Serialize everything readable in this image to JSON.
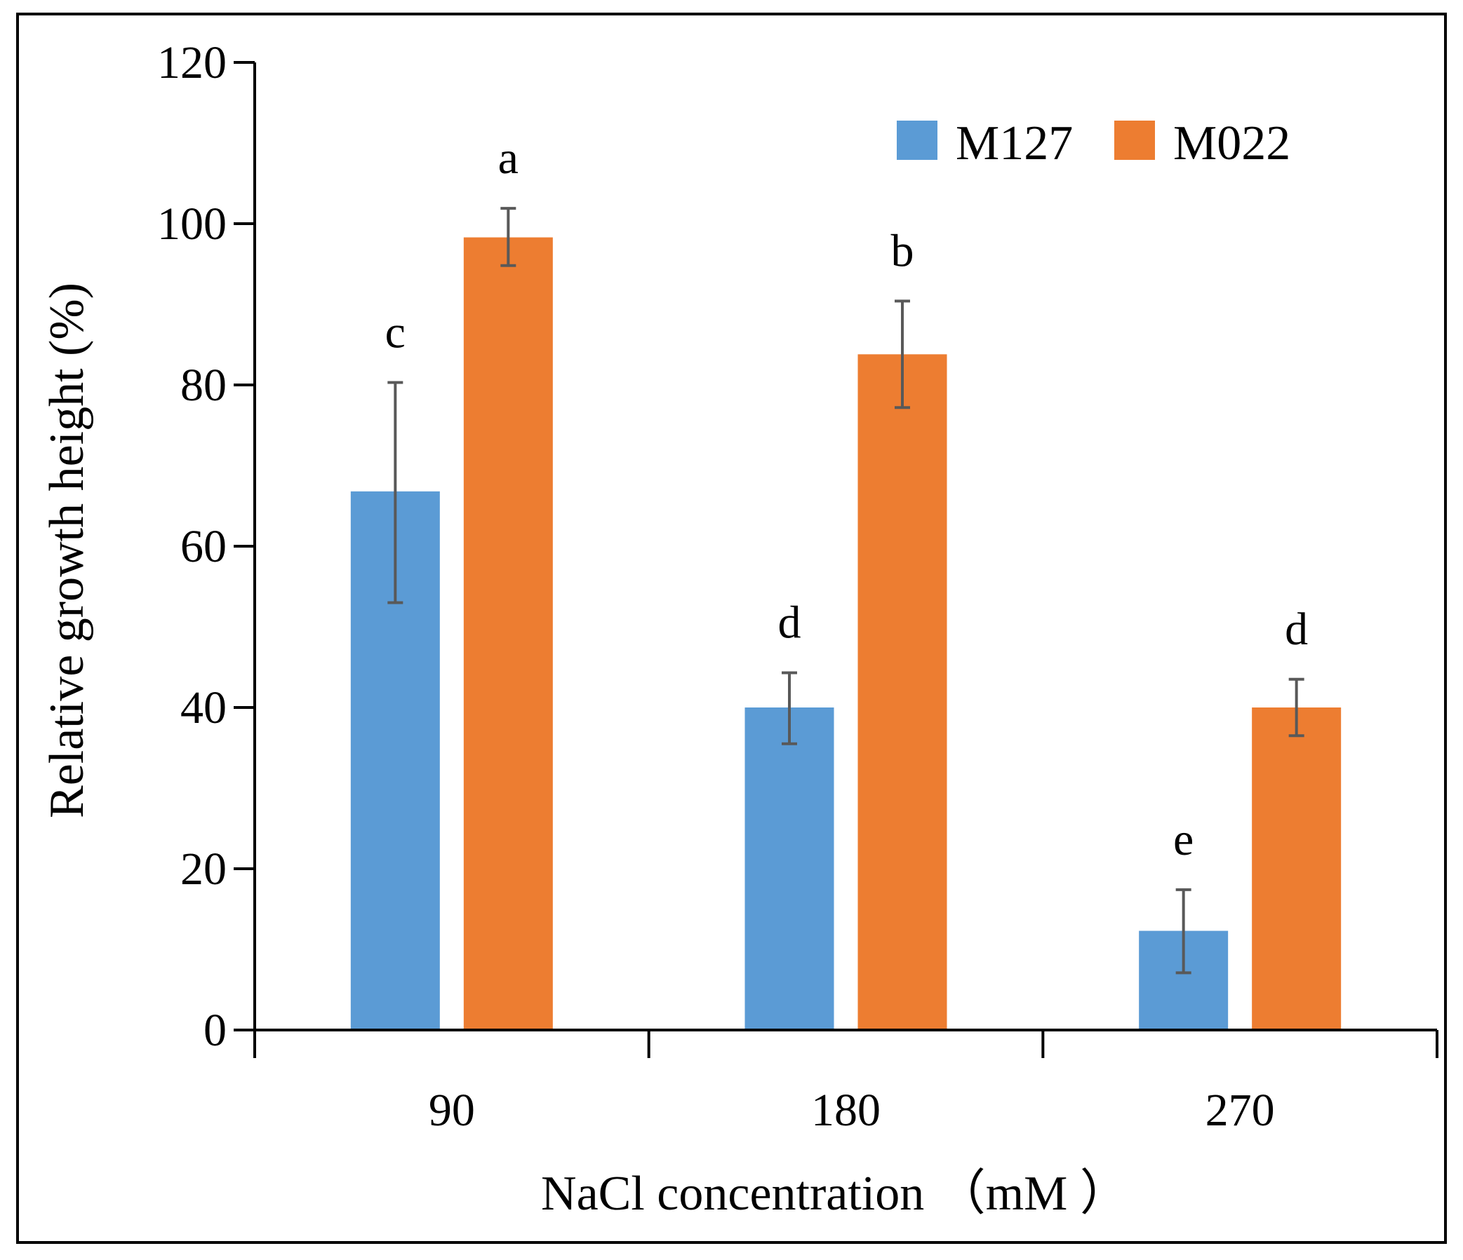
{
  "chart_data": {
    "type": "bar",
    "title": "",
    "xlabel": "NaCl concentration （mM ）",
    "ylabel": "Relative growth height (%)",
    "ylim": [
      0,
      120
    ],
    "yticks": [
      0,
      20,
      40,
      60,
      80,
      100,
      120
    ],
    "yticklabels": [
      "0",
      "20",
      "40",
      "60",
      "80",
      "100",
      "120"
    ],
    "categories": [
      "90",
      "180",
      "270"
    ],
    "series": [
      {
        "name": "M127",
        "color": "#5b9bd5",
        "values": [
          66.8,
          40.0,
          12.3
        ],
        "err_low": [
          53.0,
          35.5,
          7.1
        ],
        "err_high": [
          80.3,
          44.3,
          17.4
        ],
        "labels": [
          "c",
          "d",
          "e"
        ]
      },
      {
        "name": "M022",
        "color": "#ed7d31",
        "values": [
          98.3,
          83.8,
          40.0
        ],
        "err_low": [
          94.8,
          77.2,
          36.5
        ],
        "err_high": [
          101.9,
          90.4,
          43.5
        ],
        "labels": [
          "a",
          "b",
          "d"
        ]
      }
    ],
    "legend": {
      "position": "top-right"
    },
    "grid": false,
    "error_bar_color": "#595959",
    "axis_color": "#000000"
  }
}
